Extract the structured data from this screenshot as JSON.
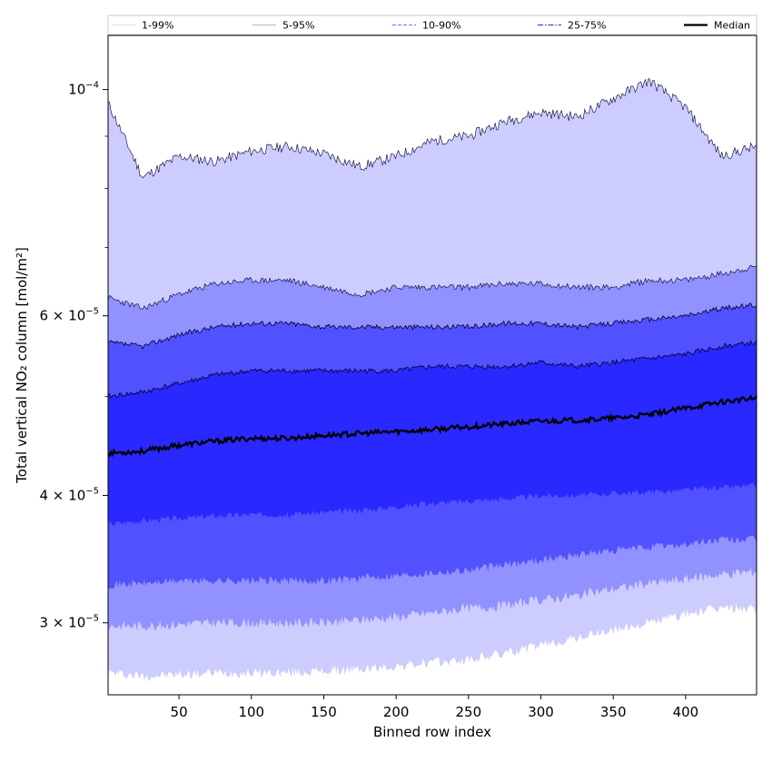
{
  "chart_data": {
    "type": "area",
    "title": "",
    "xlabel": "Binned row index",
    "ylabel": "Total vertical NO₂ column [mol/m²]",
    "y_scale": "log",
    "xlim": [
      1,
      449
    ],
    "ylim": [
      2.55e-05,
      0.000113
    ],
    "grid": false,
    "legend_position": "top",
    "legend": [
      {
        "label": "1-99%",
        "style": "solid-thin",
        "color": "#cccccc"
      },
      {
        "label": "5-95%",
        "style": "solid-thin",
        "color": "#9999cc"
      },
      {
        "label": "10-90%",
        "style": "dashed",
        "color": "#8080ff"
      },
      {
        "label": "25-75%",
        "style": "dashdot",
        "color": "#4040ff"
      },
      {
        "label": "Median",
        "style": "solid-thick",
        "color": "#000000"
      }
    ],
    "x_ticks": [
      50,
      100,
      150,
      200,
      250,
      300,
      350,
      400
    ],
    "x_tick_labels": [
      "50",
      "100",
      "150",
      "200",
      "250",
      "300",
      "350",
      "400"
    ],
    "y_ticks": [
      3e-05,
      4e-05,
      6e-05,
      0.0001
    ],
    "y_tick_labels": [
      {
        "mantissa": "3 × 10",
        "exp": "−5"
      },
      {
        "mantissa": "4 × 10",
        "exp": "−5"
      },
      {
        "mantissa": "6 × 10",
        "exp": "−5"
      },
      {
        "mantissa": "10",
        "exp": "−4"
      }
    ],
    "band_colors": {
      "p1_99": "#ccccff",
      "p5_95": "#9191ff",
      "p10_90": "#5151ff",
      "p25_75": "#2828ff"
    },
    "x": [
      1,
      25,
      50,
      75,
      100,
      125,
      150,
      175,
      200,
      225,
      250,
      275,
      300,
      325,
      350,
      375,
      400,
      425,
      449
    ],
    "series": [
      {
        "name": "p99",
        "values": [
          9.7e-05,
          8.2e-05,
          8.6e-05,
          8.5e-05,
          8.7e-05,
          8.8e-05,
          8.65e-05,
          8.4e-05,
          8.6e-05,
          8.9e-05,
          9e-05,
          9.3e-05,
          9.5e-05,
          9.4e-05,
          9.8e-05,
          0.000102,
          9.6e-05,
          8.6e-05,
          8.8e-05
        ]
      },
      {
        "name": "p95",
        "values": [
          6.25e-05,
          6.1e-05,
          6.3e-05,
          6.45e-05,
          6.5e-05,
          6.5e-05,
          6.4e-05,
          6.3e-05,
          6.4e-05,
          6.4e-05,
          6.4e-05,
          6.45e-05,
          6.45e-05,
          6.4e-05,
          6.4e-05,
          6.5e-05,
          6.5e-05,
          6.6e-05,
          6.7e-05
        ]
      },
      {
        "name": "p90",
        "values": [
          5.65e-05,
          5.6e-05,
          5.75e-05,
          5.85e-05,
          5.9e-05,
          5.9e-05,
          5.85e-05,
          5.85e-05,
          5.85e-05,
          5.85e-05,
          5.85e-05,
          5.9e-05,
          5.9e-05,
          5.85e-05,
          5.9e-05,
          5.95e-05,
          6e-05,
          6.1e-05,
          6.15e-05
        ]
      },
      {
        "name": "p75",
        "values": [
          5e-05,
          5.05e-05,
          5.15e-05,
          5.25e-05,
          5.3e-05,
          5.3e-05,
          5.3e-05,
          5.3e-05,
          5.3e-05,
          5.35e-05,
          5.35e-05,
          5.35e-05,
          5.4e-05,
          5.35e-05,
          5.4e-05,
          5.45e-05,
          5.5e-05,
          5.6e-05,
          5.65e-05
        ]
      },
      {
        "name": "Median",
        "values": [
          4.4e-05,
          4.42e-05,
          4.48e-05,
          4.52e-05,
          4.55e-05,
          4.55e-05,
          4.58e-05,
          4.6e-05,
          4.62e-05,
          4.64e-05,
          4.67e-05,
          4.7e-05,
          4.73e-05,
          4.74e-05,
          4.76e-05,
          4.8e-05,
          4.87e-05,
          4.94e-05,
          4.98e-05
        ]
      },
      {
        "name": "p25",
        "values": [
          3.75e-05,
          3.78e-05,
          3.8e-05,
          3.82e-05,
          3.83e-05,
          3.83e-05,
          3.85e-05,
          3.87e-05,
          3.9e-05,
          3.93e-05,
          3.95e-05,
          3.97e-05,
          4e-05,
          4e-05,
          4.02e-05,
          4.03e-05,
          4.05e-05,
          4.07e-05,
          4.09e-05
        ]
      },
      {
        "name": "p10",
        "values": [
          3.27e-05,
          3.28e-05,
          3.3e-05,
          3.3e-05,
          3.3e-05,
          3.3e-05,
          3.3e-05,
          3.32e-05,
          3.34e-05,
          3.36e-05,
          3.38e-05,
          3.42e-05,
          3.46e-05,
          3.5e-05,
          3.53e-05,
          3.56e-05,
          3.58e-05,
          3.62e-05,
          3.62e-05
        ]
      },
      {
        "name": "p5",
        "values": [
          2.98e-05,
          2.98e-05,
          2.99e-05,
          3e-05,
          3e-05,
          3e-05,
          3e-05,
          3.02e-05,
          3.04e-05,
          3.07e-05,
          3.1e-05,
          3.12e-05,
          3.16e-05,
          3.19e-05,
          3.24e-05,
          3.28e-05,
          3.31e-05,
          3.35e-05,
          3.37e-05
        ]
      },
      {
        "name": "p1",
        "values": [
          2.68e-05,
          2.66e-05,
          2.67e-05,
          2.68e-05,
          2.68e-05,
          2.68e-05,
          2.69e-05,
          2.7e-05,
          2.72e-05,
          2.74e-05,
          2.76e-05,
          2.8e-05,
          2.85e-05,
          2.9e-05,
          2.95e-05,
          3e-05,
          3.06e-05,
          3.1e-05,
          3.1e-05
        ]
      }
    ]
  }
}
